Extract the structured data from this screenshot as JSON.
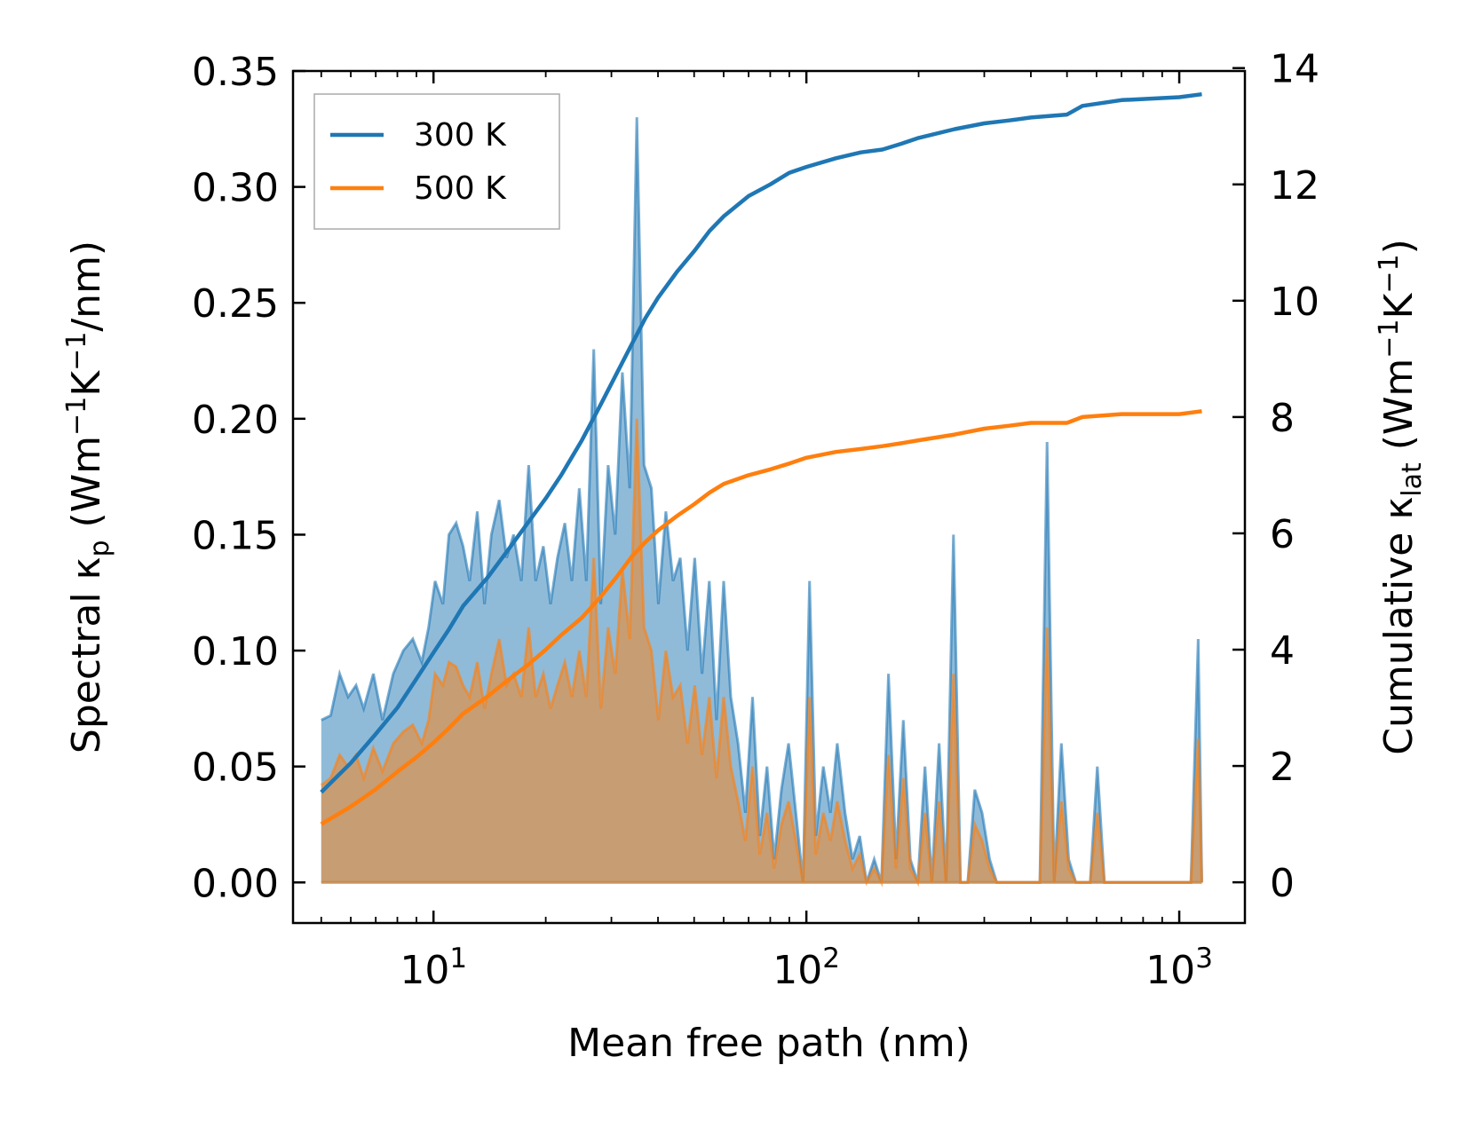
{
  "chart_data": {
    "type": "line",
    "title": "",
    "xlabel": "Mean free path (nm)",
    "xscale": "log",
    "xlim": [
      4.2,
      1500
    ],
    "x_ticks": [
      {
        "value": 10,
        "base": "10",
        "exp": "1"
      },
      {
        "value": 100,
        "base": "10",
        "exp": "2"
      },
      {
        "value": 1000,
        "base": "10",
        "exp": "3"
      }
    ],
    "left_axis": {
      "label_prefix": "Spectral κ",
      "label_sub": "p",
      "label_unit_a": " (Wm",
      "label_sup_a": "−1",
      "label_unit_b": "K",
      "label_sup_b": "−1",
      "label_unit_c": "/nm)",
      "ylim": [
        -0.0175,
        0.35
      ],
      "ticks": [
        0.0,
        0.05,
        0.1,
        0.15,
        0.2,
        0.25,
        0.3,
        0.35
      ],
      "tick_labels": [
        "0.00",
        "0.05",
        "0.10",
        "0.15",
        "0.20",
        "0.25",
        "0.30",
        "0.35"
      ]
    },
    "right_axis": {
      "label_prefix": "Cumulative κ",
      "label_sub": "lat",
      "label_unit_a": " (Wm",
      "label_sup_a": "−1",
      "label_unit_b": "K",
      "label_sup_b": "−1",
      "label_unit_c": ")",
      "ylim": [
        -0.7,
        13.95
      ],
      "ticks": [
        0,
        2,
        4,
        6,
        8,
        10,
        12,
        14
      ],
      "tick_labels": [
        "0",
        "2",
        "4",
        "6",
        "8",
        "10",
        "12",
        "14"
      ]
    },
    "legend": {
      "position": "top-left",
      "entries": [
        "300 K",
        "500 K"
      ]
    },
    "series": [
      {
        "name": "300 K",
        "color": "#1f77b4",
        "fill_color": "#1f77b4",
        "spectral": {
          "x": [
            5.0,
            5.3,
            5.6,
            5.9,
            6.2,
            6.5,
            6.9,
            7.3,
            7.8,
            8.3,
            8.8,
            9.3,
            9.7,
            10.1,
            10.6,
            11.0,
            11.5,
            12.0,
            12.5,
            13.1,
            13.7,
            14.3,
            15.0,
            15.7,
            16.4,
            17.2,
            18.0,
            18.8,
            19.7,
            20.6,
            21.5,
            22.5,
            23.5,
            24.6,
            25.7,
            26.9,
            28.1,
            29.4,
            30.7,
            32.1,
            33.6,
            35.1,
            36.7,
            38.4,
            40.1,
            42.0,
            43.9,
            45.9,
            48.0,
            50.2,
            52.5,
            54.9,
            57.4,
            60.0,
            62.7,
            65.6,
            68.6,
            71.7,
            75.0,
            78.4,
            82.0,
            85.7,
            89.6,
            93.7,
            98.0,
            102.0,
            106.0,
            111.0,
            116.0,
            121.0,
            127.0,
            133.0,
            139.0,
            145.0,
            152.0,
            159.0,
            166.0,
            174.0,
            182.0,
            190.0,
            199.0,
            208.0,
            217.0,
            227.0,
            237.0,
            248.0,
            259.0,
            271.0,
            283.0,
            296.0,
            310.0,
            324.0,
            339.0,
            354.0,
            370.0,
            387.0,
            405.0,
            423.0,
            442.0,
            462.0,
            483.0,
            505.0,
            528.0,
            552.0,
            577.0,
            603.0,
            630.0,
            659.0,
            689.0,
            720.0,
            753.0,
            787.0,
            823.0,
            860.0,
            899.0,
            940.0,
            983.0,
            1028.0,
            1075.0,
            1124.0,
            1150.0
          ],
          "values": [
            0.07,
            0.072,
            0.09,
            0.08,
            0.085,
            0.075,
            0.09,
            0.07,
            0.09,
            0.1,
            0.105,
            0.095,
            0.11,
            0.13,
            0.12,
            0.15,
            0.155,
            0.145,
            0.13,
            0.16,
            0.12,
            0.15,
            0.165,
            0.14,
            0.15,
            0.13,
            0.18,
            0.13,
            0.145,
            0.12,
            0.14,
            0.155,
            0.13,
            0.17,
            0.13,
            0.23,
            0.12,
            0.18,
            0.15,
            0.22,
            0.17,
            0.33,
            0.18,
            0.17,
            0.12,
            0.16,
            0.13,
            0.14,
            0.1,
            0.14,
            0.09,
            0.13,
            0.07,
            0.13,
            0.08,
            0.06,
            0.03,
            0.08,
            0.02,
            0.05,
            0.01,
            0.04,
            0.06,
            0.03,
            0.0,
            0.13,
            0.02,
            0.05,
            0.03,
            0.06,
            0.03,
            0.01,
            0.02,
            0.0,
            0.01,
            0.0,
            0.09,
            0.01,
            0.07,
            0.01,
            0.0,
            0.05,
            0.0,
            0.06,
            0.0,
            0.15,
            0.0,
            0.0,
            0.04,
            0.03,
            0.01,
            0.0,
            0.0,
            0.0,
            0.0,
            0.0,
            0.0,
            0.0,
            0.19,
            0.0,
            0.06,
            0.01,
            0.0,
            0.0,
            0.0,
            0.05,
            0.0,
            0.0,
            0.0,
            0.0,
            0.0,
            0.0,
            0.0,
            0.0,
            0.0,
            0.0,
            0.0,
            0.0,
            0.0,
            0.105,
            0.0
          ]
        },
        "cumulative": {
          "x": [
            5.0,
            6.0,
            7.0,
            8.0,
            9.0,
            10.0,
            11.0,
            12.0,
            14.0,
            16.0,
            18.0,
            20.0,
            22.0,
            25.0,
            28.0,
            31.0,
            34.0,
            37.0,
            40.0,
            45.0,
            50.0,
            55.0,
            60.0,
            70.0,
            80.0,
            90.0,
            100.0,
            120.0,
            140.0,
            160.0,
            180.0,
            200.0,
            250.0,
            300.0,
            350.0,
            400.0,
            500.0,
            550.0,
            700.0,
            1000.0,
            1150.0
          ],
          "values": [
            1.55,
            2.05,
            2.55,
            3.0,
            3.5,
            3.95,
            4.35,
            4.75,
            5.25,
            5.75,
            6.2,
            6.6,
            7.0,
            7.6,
            8.2,
            8.75,
            9.25,
            9.7,
            10.05,
            10.5,
            10.85,
            11.2,
            11.45,
            11.8,
            12.0,
            12.2,
            12.3,
            12.45,
            12.55,
            12.6,
            12.7,
            12.8,
            12.95,
            13.05,
            13.1,
            13.15,
            13.2,
            13.35,
            13.45,
            13.5,
            13.55
          ]
        }
      },
      {
        "name": "500 K",
        "color": "#ff7f0e",
        "fill_color": "#ff7f0e",
        "spectral": {
          "x": [
            5.0,
            5.3,
            5.6,
            5.9,
            6.2,
            6.5,
            6.9,
            7.3,
            7.8,
            8.3,
            8.8,
            9.3,
            9.7,
            10.1,
            10.6,
            11.0,
            11.5,
            12.0,
            12.5,
            13.1,
            13.7,
            14.3,
            15.0,
            15.7,
            16.4,
            17.2,
            18.0,
            18.8,
            19.7,
            20.6,
            21.5,
            22.5,
            23.5,
            24.6,
            25.7,
            26.9,
            28.1,
            29.4,
            30.7,
            32.1,
            33.6,
            35.1,
            36.7,
            38.4,
            40.1,
            42.0,
            43.9,
            45.9,
            48.0,
            50.2,
            52.5,
            54.9,
            57.4,
            60.0,
            62.7,
            65.6,
            68.6,
            71.7,
            75.0,
            78.4,
            82.0,
            85.7,
            89.6,
            93.7,
            98.0,
            102.0,
            106.0,
            111.0,
            116.0,
            121.0,
            127.0,
            133.0,
            139.0,
            145.0,
            152.0,
            159.0,
            166.0,
            174.0,
            182.0,
            190.0,
            199.0,
            208.0,
            217.0,
            227.0,
            237.0,
            248.0,
            259.0,
            271.0,
            283.0,
            296.0,
            310.0,
            324.0,
            339.0,
            354.0,
            370.0,
            387.0,
            405.0,
            423.0,
            442.0,
            462.0,
            483.0,
            505.0,
            528.0,
            552.0,
            577.0,
            603.0,
            630.0,
            659.0,
            689.0,
            720.0,
            753.0,
            787.0,
            823.0,
            860.0,
            899.0,
            940.0,
            983.0,
            1028.0,
            1075.0,
            1124.0,
            1150.0
          ],
          "values": [
            0.042,
            0.045,
            0.055,
            0.05,
            0.055,
            0.045,
            0.058,
            0.048,
            0.06,
            0.065,
            0.068,
            0.06,
            0.07,
            0.09,
            0.085,
            0.095,
            0.093,
            0.085,
            0.08,
            0.095,
            0.075,
            0.09,
            0.105,
            0.085,
            0.09,
            0.08,
            0.11,
            0.08,
            0.09,
            0.075,
            0.085,
            0.095,
            0.08,
            0.1,
            0.08,
            0.14,
            0.075,
            0.11,
            0.09,
            0.135,
            0.105,
            0.2,
            0.11,
            0.1,
            0.07,
            0.1,
            0.08,
            0.085,
            0.06,
            0.085,
            0.055,
            0.08,
            0.045,
            0.08,
            0.05,
            0.035,
            0.018,
            0.05,
            0.012,
            0.03,
            0.006,
            0.025,
            0.035,
            0.018,
            0.0,
            0.08,
            0.012,
            0.03,
            0.018,
            0.035,
            0.018,
            0.006,
            0.012,
            0.0,
            0.006,
            0.0,
            0.055,
            0.006,
            0.045,
            0.006,
            0.0,
            0.03,
            0.0,
            0.035,
            0.0,
            0.09,
            0.0,
            0.0,
            0.025,
            0.018,
            0.006,
            0.0,
            0.0,
            0.0,
            0.0,
            0.0,
            0.0,
            0.0,
            0.11,
            0.0,
            0.035,
            0.006,
            0.0,
            0.0,
            0.0,
            0.03,
            0.0,
            0.0,
            0.0,
            0.0,
            0.0,
            0.0,
            0.0,
            0.0,
            0.0,
            0.0,
            0.0,
            0.0,
            0.0,
            0.062,
            0.0
          ]
        },
        "cumulative": {
          "x": [
            5.0,
            6.0,
            7.0,
            8.0,
            9.0,
            10.0,
            11.0,
            12.0,
            14.0,
            16.0,
            18.0,
            20.0,
            22.0,
            25.0,
            28.0,
            31.0,
            34.0,
            37.0,
            40.0,
            45.0,
            50.0,
            55.0,
            60.0,
            70.0,
            80.0,
            90.0,
            100.0,
            120.0,
            140.0,
            160.0,
            180.0,
            200.0,
            250.0,
            300.0,
            350.0,
            400.0,
            500.0,
            550.0,
            700.0,
            1000.0,
            1150.0
          ],
          "values": [
            1.0,
            1.3,
            1.6,
            1.9,
            2.15,
            2.4,
            2.65,
            2.9,
            3.2,
            3.5,
            3.75,
            4.0,
            4.25,
            4.55,
            4.9,
            5.25,
            5.6,
            5.85,
            6.05,
            6.3,
            6.5,
            6.7,
            6.85,
            7.0,
            7.1,
            7.2,
            7.3,
            7.4,
            7.45,
            7.5,
            7.55,
            7.6,
            7.7,
            7.8,
            7.85,
            7.9,
            7.9,
            8.0,
            8.05,
            8.05,
            8.1
          ]
        }
      }
    ]
  }
}
